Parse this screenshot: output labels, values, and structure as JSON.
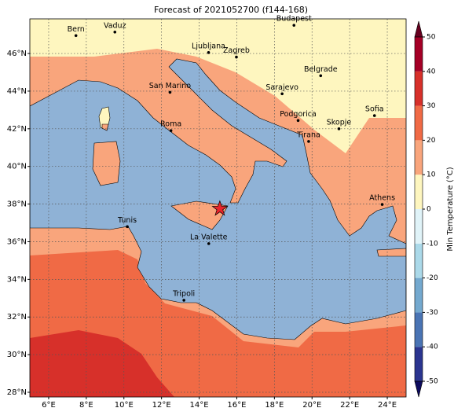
{
  "chart_data": {
    "type": "map",
    "title": "Forecast of 2021052700 (f144-168)",
    "xlim": [
      5,
      25
    ],
    "ylim": [
      27.75,
      47.84
    ],
    "xticks": [
      {
        "value": 6,
        "label": "6°E"
      },
      {
        "value": 8,
        "label": "8°E"
      },
      {
        "value": 10,
        "label": "10°E"
      },
      {
        "value": 12,
        "label": "12°E"
      },
      {
        "value": 14,
        "label": "14°E"
      },
      {
        "value": 16,
        "label": "16°E"
      },
      {
        "value": 18,
        "label": "18°E"
      },
      {
        "value": 20,
        "label": "20°E"
      },
      {
        "value": 22,
        "label": "22°E"
      },
      {
        "value": 24,
        "label": "24°E"
      }
    ],
    "yticks": [
      {
        "value": 28,
        "label": "28°N"
      },
      {
        "value": 30,
        "label": "30°N"
      },
      {
        "value": 32,
        "label": "32°N"
      },
      {
        "value": 34,
        "label": "34°N"
      },
      {
        "value": 36,
        "label": "36°N"
      },
      {
        "value": 38,
        "label": "38°N"
      },
      {
        "value": 40,
        "label": "40°N"
      },
      {
        "value": 42,
        "label": "42°N"
      },
      {
        "value": 44,
        "label": "44°N"
      },
      {
        "value": 46,
        "label": "46°N"
      }
    ],
    "grid": true,
    "cities": [
      {
        "name": "Bern",
        "lon": 7.45,
        "lat": 46.95
      },
      {
        "name": "Vaduz",
        "lon": 9.52,
        "lat": 47.14
      },
      {
        "name": "Budapest",
        "lon": 19.04,
        "lat": 47.5
      },
      {
        "name": "Ljubljana",
        "lon": 14.5,
        "lat": 46.05
      },
      {
        "name": "Zagreb",
        "lon": 15.98,
        "lat": 45.81
      },
      {
        "name": "Belgrade",
        "lon": 20.46,
        "lat": 44.82
      },
      {
        "name": "Sarajevo",
        "lon": 18.41,
        "lat": 43.86
      },
      {
        "name": "San Marino",
        "lon": 12.45,
        "lat": 43.94
      },
      {
        "name": "Sofia",
        "lon": 23.32,
        "lat": 42.7
      },
      {
        "name": "Podgorica",
        "lon": 19.26,
        "lat": 42.44
      },
      {
        "name": "Skopje",
        "lon": 21.43,
        "lat": 42.0
      },
      {
        "name": "Roma",
        "lon": 12.5,
        "lat": 41.9
      },
      {
        "name": "Tirana",
        "lon": 19.82,
        "lat": 41.33
      },
      {
        "name": "Athens",
        "lon": 23.73,
        "lat": 37.98
      },
      {
        "name": "Tunis",
        "lon": 10.18,
        "lat": 36.8
      },
      {
        "name": "La Valette",
        "lon": 14.51,
        "lat": 35.9
      },
      {
        "name": "Tripoli",
        "lon": 13.19,
        "lat": 32.89
      }
    ],
    "marker": {
      "lon": 15.1,
      "lat": 37.75,
      "color": "#e8232a"
    },
    "colorbar": {
      "label": "Min Temperature (°C)",
      "ticks": [
        -50,
        -40,
        -30,
        -20,
        -10,
        0,
        10,
        20,
        30,
        40,
        50
      ],
      "colors": [
        "#2b3590",
        "#4a74b4",
        "#74a9cf",
        "#abd9e9",
        "#e0f3f8",
        "#fef6bf",
        "#f9a57c",
        "#f06a45",
        "#d7302a",
        "#a50026"
      ]
    }
  }
}
